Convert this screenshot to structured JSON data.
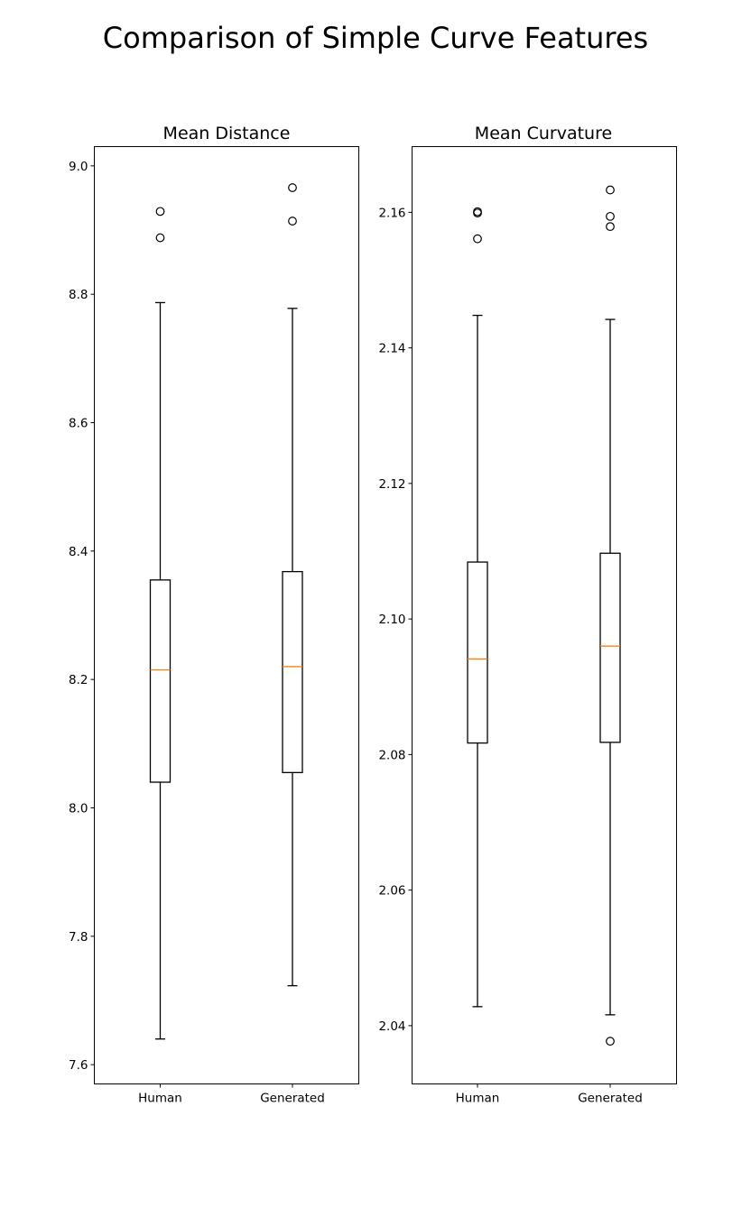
{
  "title": "Comparison of Simple Curve Features",
  "chart_data": [
    {
      "type": "box",
      "title": "Mean Distance",
      "xlabel": "",
      "ylabel": "",
      "categories": [
        "Human",
        "Generated"
      ],
      "ylim": [
        7.57,
        9.03
      ],
      "yticks": [
        7.6,
        7.8,
        8.0,
        8.2,
        8.4,
        8.6,
        8.8,
        9.0
      ],
      "ytick_labels": [
        "7.6",
        "7.8",
        "8.0",
        "8.2",
        "8.4",
        "8.6",
        "8.8",
        "9.0"
      ],
      "boxes": [
        {
          "category": "Human",
          "whisker_low": 7.64,
          "q1": 8.04,
          "median": 8.215,
          "q3": 8.355,
          "whisker_high": 8.787,
          "outliers": [
            8.888,
            8.929
          ]
        },
        {
          "category": "Generated",
          "whisker_low": 7.723,
          "q1": 8.055,
          "median": 8.22,
          "q3": 8.368,
          "whisker_high": 8.778,
          "outliers": [
            8.914,
            8.966
          ]
        }
      ]
    },
    {
      "type": "box",
      "title": "Mean Curvature",
      "xlabel": "",
      "ylabel": "",
      "categories": [
        "Human",
        "Generated"
      ],
      "ylim": [
        2.0314,
        2.1697
      ],
      "yticks": [
        2.04,
        2.06,
        2.08,
        2.1,
        2.12,
        2.14,
        2.16
      ],
      "ytick_labels": [
        "2.04",
        "2.06",
        "2.08",
        "2.10",
        "2.12",
        "2.14",
        "2.16"
      ],
      "boxes": [
        {
          "category": "Human",
          "whisker_low": 2.0428,
          "q1": 2.0817,
          "median": 2.0941,
          "q3": 2.1084,
          "whisker_high": 2.1448,
          "outliers": [
            2.1561,
            2.1599,
            2.1601
          ]
        },
        {
          "category": "Generated",
          "whisker_low": 2.0416,
          "q1": 2.0818,
          "median": 2.096,
          "q3": 2.1097,
          "whisker_high": 2.1442,
          "outliers": [
            2.0377,
            2.1579,
            2.1594,
            2.1633
          ]
        }
      ]
    }
  ],
  "colors": {
    "box": "#000000",
    "median": "#ff7f0e",
    "background": "#ffffff"
  }
}
